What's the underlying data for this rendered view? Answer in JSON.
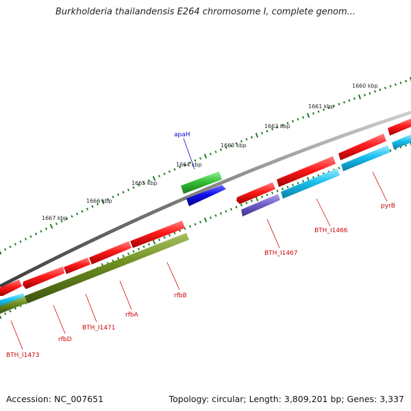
{
  "title": "Burkholderia thailandensis E264 chromosome I, complete genom...",
  "footer": {
    "accession": "Accession: NC_007651",
    "topology": "Topology: circular; Length: 3,809,201 bp; Genes: 3,337"
  },
  "colors": {
    "backbone": "#7a7a7a",
    "tick": "#1f7a1f",
    "gene_red": "#e61414",
    "gene_cyan": "#16bde6",
    "gene_olive": "#6b8c1f",
    "gene_green": "#3cc23c",
    "gene_blue": "#1010e6",
    "gene_purple": "#7060c8",
    "label_red": "#cc0000",
    "label_blue": "#0000cc"
  },
  "kbp_labels": [
    "1660 kbp",
    "1661 kbp",
    "1662 kbp",
    "1663 kbp",
    "1664 kbp",
    "1665 kbp",
    "1666 kbp",
    "1667 kbp"
  ],
  "gene_labels": [
    {
      "name": "apaH",
      "color": "blue"
    },
    {
      "name": "pyrB",
      "color": "red"
    },
    {
      "name": "BTH_I1466",
      "color": "red"
    },
    {
      "name": "BTH_I1467",
      "color": "red"
    },
    {
      "name": "rfbB",
      "color": "red"
    },
    {
      "name": "rfbA",
      "color": "red"
    },
    {
      "name": "BTH_I1471",
      "color": "red"
    },
    {
      "name": "rfbD",
      "color": "red"
    },
    {
      "name": "BTH_I1473",
      "color": "red"
    }
  ]
}
